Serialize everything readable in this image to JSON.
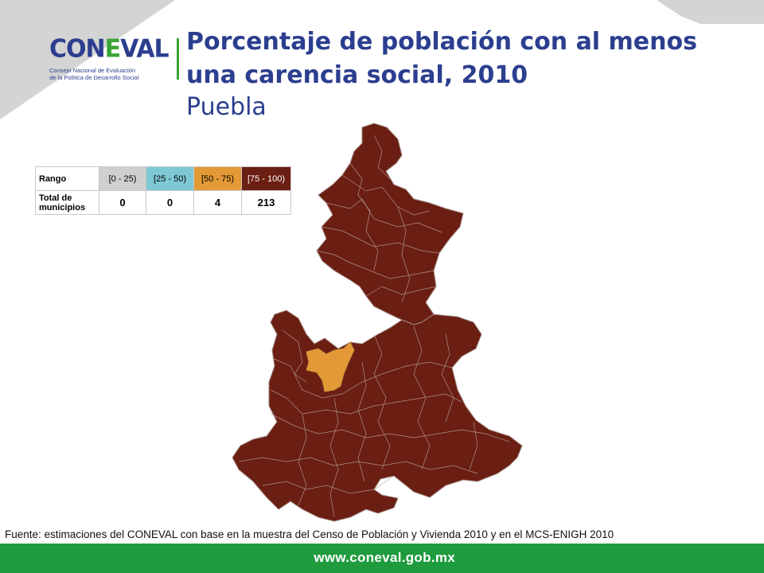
{
  "logo": {
    "name_prefix": "CON",
    "name_accent": "E",
    "name_suffix": "VAL",
    "subline_1": "Consejo Nacional de Evaluación",
    "subline_2": "de la Política de Desarrollo Social"
  },
  "header": {
    "title_line_1": "Porcentaje de población con al menos",
    "title_line_2": "una carencia social, 2010",
    "subtitle": "Puebla"
  },
  "legend_table": {
    "range_label": "Rango",
    "count_label": "Total de municipios",
    "ranges": [
      {
        "label": "[0 - 25)",
        "count": "0",
        "color": "#cfcfcf"
      },
      {
        "label": "[25 - 50)",
        "count": "0",
        "color": "#7ec8d3"
      },
      {
        "label": "[50 - 75)",
        "count": "4",
        "color": "#e39a36"
      },
      {
        "label": "[75 - 100)",
        "count": "213",
        "color": "#6b1e12"
      }
    ]
  },
  "map": {
    "state": "Puebla",
    "dominant_class": "[75 - 100)",
    "highlight_class": "[50 - 75)",
    "fill_dominant": "#6b1e12",
    "fill_highlight": "#e39a36",
    "border_color": "#b9a59f"
  },
  "source": "Fuente: estimaciones del CONEVAL con base en la muestra del Censo de Población y Vivienda 2010 y en el MCS-ENIGH 2010",
  "footer": {
    "url": "www.coneval.gob.mx",
    "color": "#1e9b3d"
  }
}
